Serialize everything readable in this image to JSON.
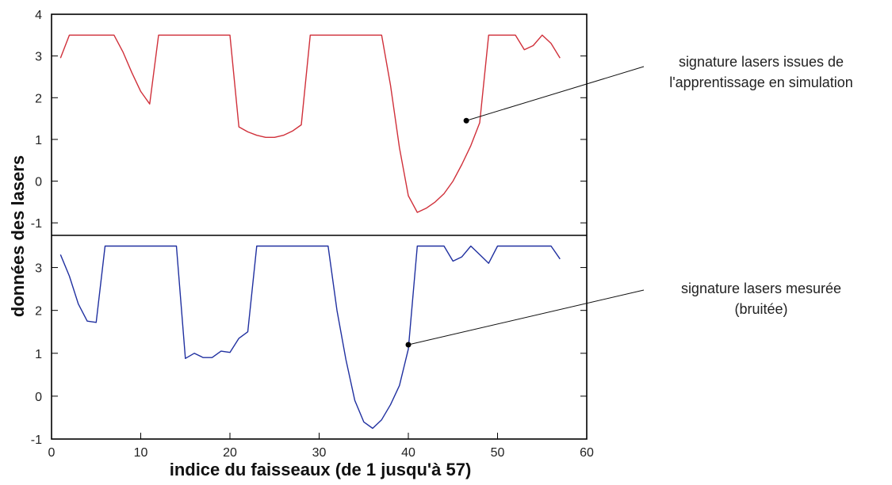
{
  "chart_data": {
    "type": "line",
    "xlabel": "indice du faisseaux (de 1 jusqu'à 57)",
    "ylabel": "données des lasers",
    "xlim": [
      0,
      60
    ],
    "x_ticks": [
      "0",
      "10",
      "20",
      "30",
      "40",
      "50",
      "60"
    ],
    "grid": false,
    "panels": [
      {
        "ylim": [
          -1.3,
          4
        ],
        "y_ticks": [
          "4",
          "3",
          "2",
          "1",
          "0",
          "-1"
        ],
        "series": [
          {
            "color": "#d0303a",
            "x": [
              1,
              2,
              3,
              4,
              5,
              6,
              7,
              8,
              9,
              10,
              11,
              12,
              13,
              14,
              15,
              16,
              17,
              18,
              19,
              20,
              21,
              22,
              23,
              24,
              25,
              26,
              27,
              28,
              29,
              30,
              31,
              32,
              33,
              34,
              35,
              36,
              37,
              38,
              39,
              40,
              41,
              42,
              43,
              44,
              45,
              46,
              47,
              48,
              49,
              50,
              51,
              52,
              53,
              54,
              55,
              56,
              57
            ],
            "y": [
              2.95,
              3.5,
              3.5,
              3.5,
              3.5,
              3.5,
              3.5,
              3.1,
              2.6,
              2.15,
              1.85,
              3.5,
              3.5,
              3.5,
              3.5,
              3.5,
              3.5,
              3.5,
              3.5,
              3.5,
              1.3,
              1.18,
              1.1,
              1.05,
              1.05,
              1.1,
              1.2,
              1.35,
              3.5,
              3.5,
              3.5,
              3.5,
              3.5,
              3.5,
              3.5,
              3.5,
              3.5,
              2.3,
              0.8,
              -0.35,
              -0.75,
              -0.65,
              -0.5,
              -0.3,
              0.0,
              0.4,
              0.85,
              1.4,
              3.5,
              3.5,
              3.5,
              3.5,
              3.15,
              3.25,
              3.5,
              3.3,
              2.95
            ]
          }
        ],
        "annotation": {
          "lines": [
            "signature lasers issues de",
            "l'apprentissage en simulation"
          ],
          "point": [
            46.5,
            1.45
          ]
        }
      },
      {
        "ylim": [
          -1,
          3.75
        ],
        "y_ticks": [
          "3",
          "2",
          "1",
          "0",
          "-1"
        ],
        "series": [
          {
            "color": "#2030a0",
            "x": [
              1,
              2,
              3,
              4,
              5,
              6,
              7,
              8,
              9,
              10,
              11,
              12,
              13,
              14,
              15,
              16,
              17,
              18,
              19,
              20,
              21,
              22,
              23,
              24,
              25,
              26,
              27,
              28,
              29,
              30,
              31,
              32,
              33,
              34,
              35,
              36,
              37,
              38,
              39,
              40,
              41,
              42,
              43,
              44,
              45,
              46,
              47,
              48,
              49,
              50,
              51,
              52,
              53,
              54,
              55,
              56,
              57
            ],
            "y": [
              3.3,
              2.8,
              2.15,
              1.75,
              1.72,
              3.5,
              3.5,
              3.5,
              3.5,
              3.5,
              3.5,
              3.5,
              3.5,
              3.5,
              0.88,
              1.0,
              0.9,
              0.9,
              1.05,
              1.02,
              1.35,
              1.5,
              3.5,
              3.5,
              3.5,
              3.5,
              3.5,
              3.5,
              3.5,
              3.5,
              3.5,
              2.0,
              0.85,
              -0.1,
              -0.6,
              -0.75,
              -0.55,
              -0.2,
              0.25,
              1.1,
              3.5,
              3.5,
              3.5,
              3.5,
              3.15,
              3.25,
              3.5,
              3.3,
              3.1,
              3.5,
              3.5,
              3.5,
              3.5,
              3.5,
              3.5,
              3.5,
              3.2
            ]
          }
        ],
        "annotation": {
          "lines": [
            "signature lasers mesurée",
            "(bruitée)"
          ],
          "point": [
            40.0,
            1.2
          ]
        }
      }
    ]
  }
}
